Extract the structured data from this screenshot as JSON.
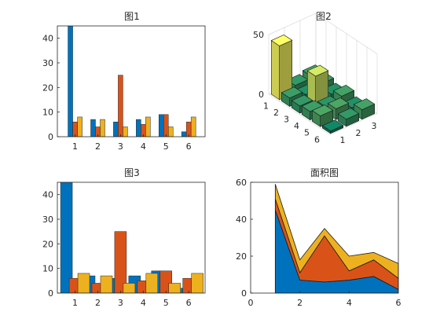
{
  "colors": {
    "blue": "#0072BD",
    "orange": "#D95319",
    "yellow": "#EDB120",
    "axis": "#262626",
    "grid": "#d9d9d9"
  },
  "chart_data": [
    {
      "type": "bar",
      "title": "图1",
      "categories": [
        "1",
        "2",
        "3",
        "4",
        "5",
        "6"
      ],
      "series": [
        {
          "values": [
            45,
            7,
            6,
            7,
            9,
            2
          ]
        },
        {
          "values": [
            6,
            4,
            25,
            5,
            9,
            6
          ]
        },
        {
          "values": [
            8,
            7,
            4,
            8,
            4,
            8
          ]
        }
      ],
      "ylim": [
        0,
        45
      ],
      "yticks": [
        0,
        10,
        20,
        30,
        40
      ],
      "bar_mode": "grouped-narrow"
    },
    {
      "type": "bar3d",
      "title": "图2",
      "rows": [
        "1",
        "2",
        "3",
        "4",
        "5",
        "6"
      ],
      "cols": [
        "1",
        "2",
        "3"
      ],
      "values": [
        [
          45,
          6,
          8
        ],
        [
          7,
          4,
          7
        ],
        [
          6,
          25,
          4
        ],
        [
          7,
          5,
          8
        ],
        [
          9,
          9,
          4
        ],
        [
          2,
          6,
          8
        ]
      ],
      "zticks": [
        0,
        50
      ],
      "colormap": "summer"
    },
    {
      "type": "bar",
      "title": "图3",
      "categories": [
        "1",
        "2",
        "3",
        "4",
        "5",
        "6"
      ],
      "series": [
        {
          "values": [
            45,
            7,
            6,
            7,
            9,
            2
          ]
        },
        {
          "values": [
            6,
            4,
            25,
            5,
            9,
            6
          ]
        },
        {
          "values": [
            8,
            7,
            4,
            8,
            4,
            8
          ]
        }
      ],
      "ylim": [
        0,
        45
      ],
      "yticks": [
        0,
        10,
        20,
        30,
        40
      ],
      "bar_mode": "grouped-wide"
    },
    {
      "type": "area",
      "title": "面积图",
      "x": [
        1,
        2,
        3,
        4,
        5,
        6
      ],
      "series": [
        {
          "values": [
            45,
            7,
            6,
            7,
            9,
            2
          ]
        },
        {
          "values": [
            6,
            4,
            25,
            5,
            9,
            6
          ]
        },
        {
          "values": [
            8,
            7,
            4,
            8,
            4,
            8
          ]
        }
      ],
      "xlim": [
        0,
        6
      ],
      "ylim": [
        0,
        60
      ],
      "xticks": [
        0,
        2,
        4,
        6
      ],
      "yticks": [
        0,
        20,
        40,
        60
      ]
    }
  ]
}
